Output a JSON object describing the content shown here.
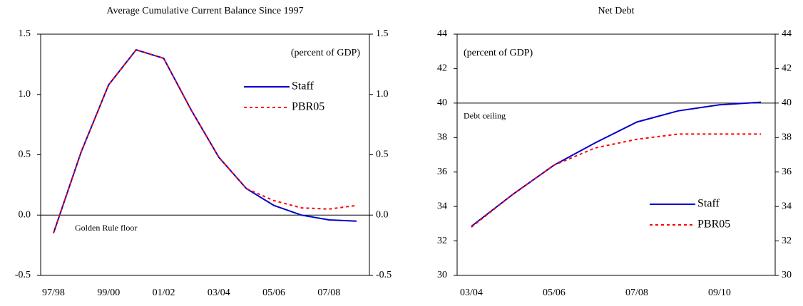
{
  "chart_data": [
    {
      "type": "line",
      "title": "Average Cumulative Current Balance Since 1997",
      "categories": [
        "97/98",
        null,
        "99/00",
        null,
        "01/02",
        null,
        "03/04",
        null,
        "05/06",
        null,
        "07/08",
        null
      ],
      "series": [
        {
          "name": "Staff",
          "color": "#0000cc",
          "dash": "solid",
          "values": [
            -0.15,
            0.52,
            1.08,
            1.37,
            1.3,
            0.87,
            0.48,
            0.22,
            0.08,
            0.0,
            -0.04,
            -0.05
          ]
        },
        {
          "name": "PBR05",
          "color": "#ff0000",
          "dash": "dotted",
          "values": [
            -0.15,
            0.52,
            1.08,
            1.37,
            1.3,
            0.87,
            0.48,
            0.22,
            0.12,
            0.06,
            0.05,
            0.08
          ]
        }
      ],
      "ylim": [
        -0.5,
        1.5
      ],
      "yticks": [
        -0.5,
        {
          "value": 0,
          "label": "0.0"
        },
        0.5,
        {
          "value": 1,
          "label": "1.0"
        },
        1.5
      ],
      "annotation": "(percent of GDP)",
      "reference_line": {
        "value": 0,
        "label": "Golden Rule floor"
      },
      "legend": "upper right"
    },
    {
      "type": "line",
      "title": "Net Debt",
      "categories": [
        "03/04",
        null,
        "05/06",
        null,
        "07/08",
        null,
        "09/10",
        null
      ],
      "series": [
        {
          "name": "Staff",
          "color": "#0000cc",
          "dash": "solid",
          "values": [
            32.85,
            34.7,
            36.4,
            37.7,
            38.9,
            39.55,
            39.9,
            40.05
          ]
        },
        {
          "name": "PBR05",
          "color": "#ff0000",
          "dash": "dotted",
          "values": [
            32.8,
            34.7,
            36.4,
            37.4,
            37.9,
            38.2,
            38.2,
            38.2
          ]
        }
      ],
      "ylim": [
        30,
        44
      ],
      "yticks": [
        30,
        32,
        34,
        36,
        38,
        40,
        42,
        44
      ],
      "annotation": "(percent of GDP)",
      "reference_line": {
        "value": 40,
        "label": "Debt ceiling"
      },
      "legend": "lower right"
    }
  ]
}
